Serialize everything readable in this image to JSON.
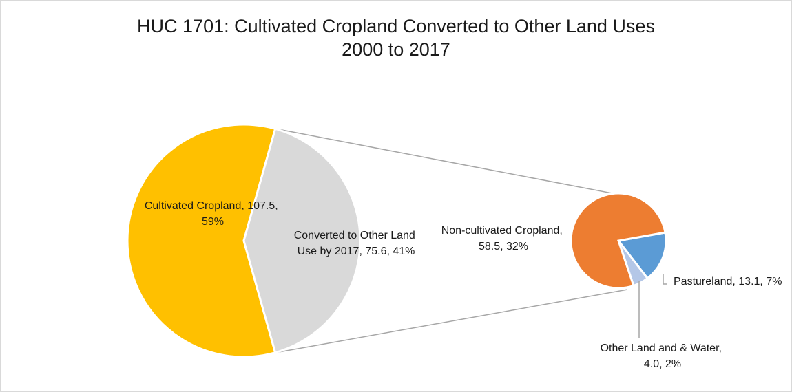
{
  "chart_data": {
    "type": "pie",
    "subtype": "pie-of-pie",
    "title": "HUC 1701: Cultivated Cropland Converted to Other Land Uses",
    "subtitle": "2000 to 2017",
    "primary": {
      "slices": [
        {
          "label_line1": "Cultivated Cropland, 107.5,",
          "label_line2": "59%",
          "value": 107.5,
          "percent": 59,
          "color": "#FFC000"
        },
        {
          "label_line1": "Converted to Other Land",
          "label_line2": "Use by 2017, 75.6, 41%",
          "value": 75.6,
          "percent": 41,
          "color": "#D9D9D9"
        }
      ]
    },
    "secondary": {
      "slices": [
        {
          "label_line1": "Non-cultivated Cropland,",
          "label_line2": "58.5, 32%",
          "value": 58.5,
          "percent": 32,
          "color": "#ED7D31"
        },
        {
          "label_line1": "Pastureland, 13.1, 7%",
          "label_line2": "",
          "value": 13.1,
          "percent": 7,
          "color": "#5B9BD5"
        },
        {
          "label_line1": "Other Land and & Water,",
          "label_line2": "4.0, 2%",
          "value": 4.0,
          "percent": 2,
          "color": "#B4C7E7"
        }
      ]
    },
    "connector_color": "#A6A6A6",
    "leader_color": "#A6A6A6"
  }
}
